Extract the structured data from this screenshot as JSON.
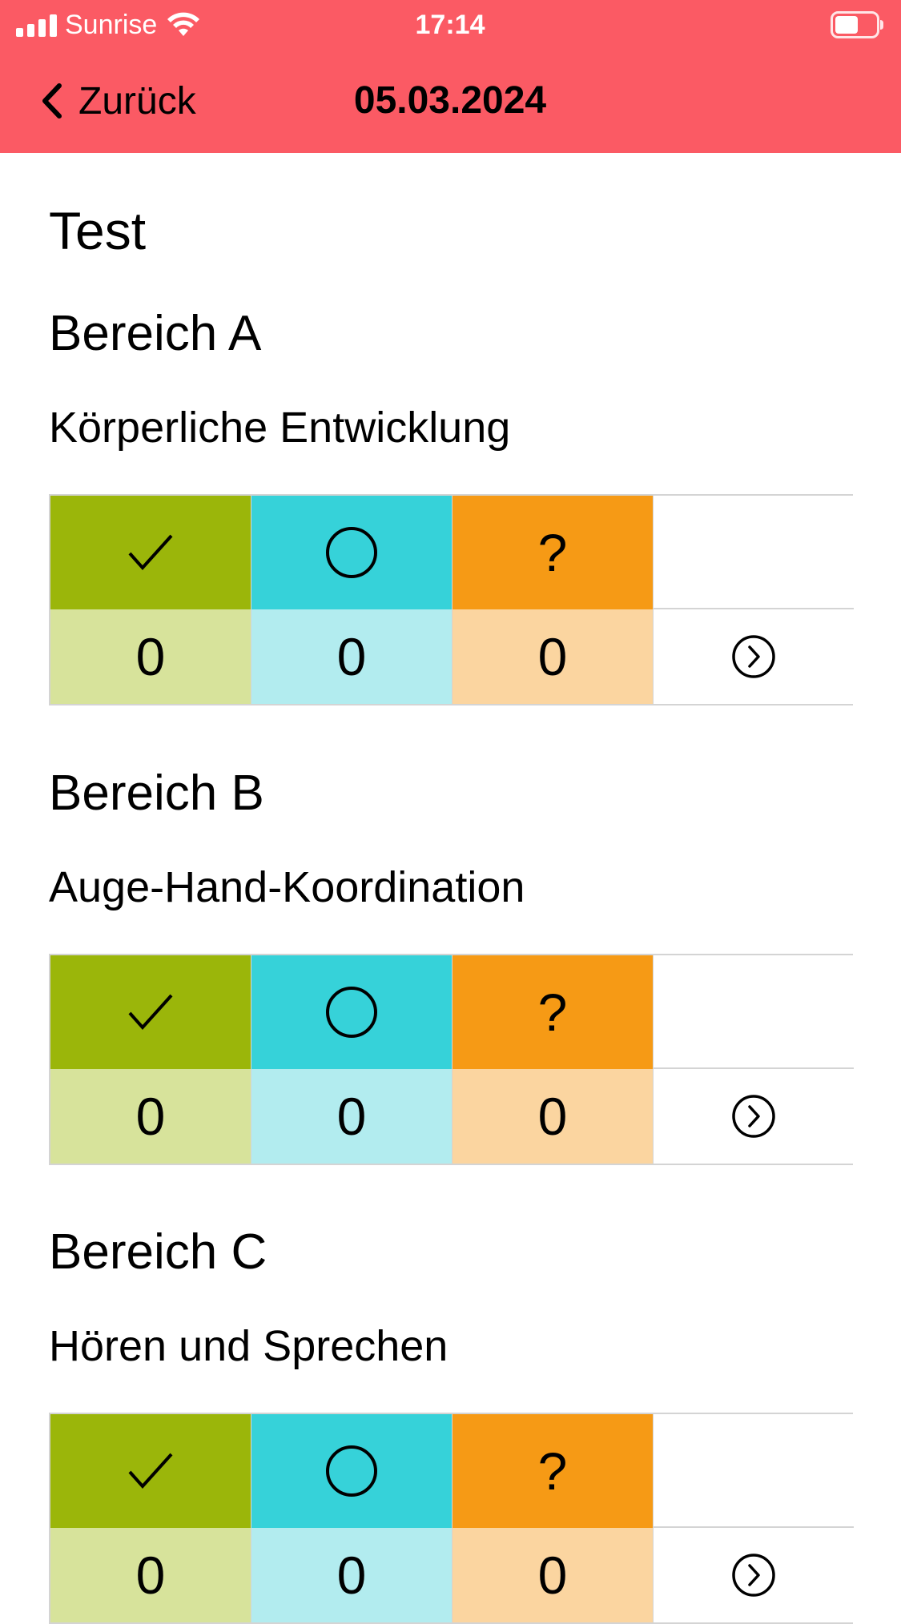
{
  "status_bar": {
    "carrier": "Sunrise",
    "time": "17:14",
    "signal_icon": "signal-bars-icon",
    "wifi_icon": "wifi-icon",
    "battery_icon": "battery-icon"
  },
  "nav": {
    "back_label": "Zurück",
    "title": "05.03.2024",
    "background_color": "#fb5a64"
  },
  "page": {
    "title": "Test"
  },
  "legend": {
    "check_icon": "checkmark-icon",
    "circle_icon": "circle-icon",
    "question_symbol": "?",
    "colors": {
      "check": "#9bb60a",
      "circle": "#36d2d9",
      "question": "#f69a15",
      "check_light": "#d7e39b",
      "circle_light": "#b2ecef",
      "question_light": "#fbd5a0"
    }
  },
  "sections": [
    {
      "title": "Bereich A",
      "subtitle": "Körperliche Entwicklung",
      "counts": {
        "check": "0",
        "circle": "0",
        "question": "0"
      }
    },
    {
      "title": "Bereich B",
      "subtitle": "Auge-Hand-Koordination",
      "counts": {
        "check": "0",
        "circle": "0",
        "question": "0"
      }
    },
    {
      "title": "Bereich C",
      "subtitle": "Hören und Sprechen",
      "counts": {
        "check": "0",
        "circle": "0",
        "question": "0"
      }
    }
  ]
}
